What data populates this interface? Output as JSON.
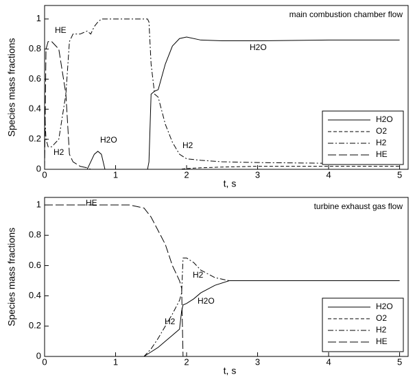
{
  "chart_data": [
    {
      "type": "line",
      "annotations": [
        "main combustion chamber flow",
        "HE",
        "H2",
        "H2O",
        "H2",
        "H2O"
      ],
      "xlabel": "t, s",
      "ylabel": "Species mass fractions",
      "xlim": [
        0,
        5.12
      ],
      "ylim": [
        0,
        1.09
      ],
      "xticks": [
        0,
        1,
        2,
        3,
        4,
        5
      ],
      "yticks": [
        0,
        0.2,
        0.4,
        0.6,
        0.8,
        1
      ],
      "legend": "lower right",
      "x": [
        0,
        0.02,
        0.05,
        0.1,
        0.2,
        0.3,
        0.35,
        0.4,
        0.5,
        0.6,
        0.65,
        0.7,
        0.75,
        0.8,
        0.85,
        0.9,
        1.0,
        1.2,
        1.45,
        1.47,
        1.5,
        1.55,
        1.6,
        1.7,
        1.8,
        1.9,
        2.0,
        2.2,
        2.5,
        3,
        4,
        5
      ],
      "series": [
        {
          "name": "H2O",
          "color": "#000000",
          "dash": "solid",
          "values": [
            0,
            0,
            0,
            0,
            0,
            0,
            0,
            0,
            0,
            0,
            0.05,
            0.1,
            0.12,
            0.1,
            0,
            0,
            0,
            0,
            0,
            0.05,
            0.5,
            0.52,
            0.53,
            0.7,
            0.82,
            0.87,
            0.88,
            0.86,
            0.855,
            0.855,
            0.86,
            0.86
          ]
        },
        {
          "name": "O2",
          "color": "#000000",
          "dash": "dashed",
          "values": [
            0,
            0,
            0,
            0,
            0,
            0,
            0,
            0,
            0,
            0,
            0,
            0,
            0,
            0,
            0,
            0,
            0,
            0,
            0,
            0,
            0,
            0,
            0,
            0,
            0,
            0,
            0.005,
            0.01,
            0.015,
            0.02,
            0.02,
            0.02
          ]
        },
        {
          "name": "H2",
          "color": "#000000",
          "dash": "dashdot",
          "values": [
            0.4,
            0.2,
            0.15,
            0.15,
            0.2,
            0.5,
            0.85,
            0.9,
            0.9,
            0.92,
            0.9,
            0.95,
            0.98,
            1,
            1,
            1,
            1,
            1,
            1,
            0.98,
            0.7,
            0.5,
            0.48,
            0.3,
            0.18,
            0.1,
            0.07,
            0.06,
            0.05,
            0.045,
            0.04,
            0.04
          ]
        },
        {
          "name": "HE",
          "color": "#000000",
          "dash": "longdash",
          "values": [
            0,
            0.8,
            0.85,
            0.85,
            0.8,
            0.5,
            0.1,
            0.05,
            0.02,
            0.01,
            0,
            0,
            0,
            0,
            0,
            0,
            0,
            0,
            0,
            0,
            0,
            0,
            0,
            0,
            0,
            0,
            0,
            0,
            0,
            0,
            0,
            0
          ]
        }
      ]
    },
    {
      "type": "line",
      "annotations": [
        "turbine exhaust gas flow",
        "HE",
        "H2",
        "H2O",
        "H2"
      ],
      "xlabel": "t, s",
      "ylabel": "Species mass fractions",
      "xlim": [
        0,
        5.12
      ],
      "ylim": [
        0,
        1.05
      ],
      "xticks": [
        0,
        1,
        2,
        3,
        4,
        5
      ],
      "yticks": [
        0,
        0.2,
        0.4,
        0.6,
        0.8,
        1
      ],
      "legend": "lower right",
      "x": [
        0,
        1,
        1.2,
        1.4,
        1.5,
        1.6,
        1.7,
        1.8,
        1.9,
        1.93,
        1.95,
        2.0,
        2.1,
        2.2,
        2.4,
        2.6,
        3,
        4,
        5
      ],
      "series": [
        {
          "name": "H2O",
          "color": "#000000",
          "dash": "solid",
          "values": [
            0,
            0,
            0,
            0,
            0.03,
            0.06,
            0.1,
            0.14,
            0.18,
            0.3,
            0.34,
            0.35,
            0.38,
            0.42,
            0.47,
            0.5,
            0.5,
            0.5,
            0.5
          ]
        },
        {
          "name": "O2",
          "color": "#000000",
          "dash": "dashed",
          "values": [
            0,
            0,
            0,
            0,
            0,
            0,
            0,
            0,
            0,
            0,
            0,
            0,
            0,
            0,
            0,
            0,
            0,
            0,
            0
          ]
        },
        {
          "name": "H2",
          "color": "#000000",
          "dash": "dashdot",
          "values": [
            0,
            0,
            0,
            0,
            0.05,
            0.12,
            0.2,
            0.28,
            0.37,
            0.42,
            0.65,
            0.65,
            0.62,
            0.57,
            0.52,
            0.5,
            0.5,
            0.5,
            0.5
          ]
        },
        {
          "name": "HE",
          "color": "#000000",
          "dash": "longdash",
          "values": [
            1,
            1,
            1,
            0.98,
            0.92,
            0.83,
            0.74,
            0.6,
            0.5,
            0.45,
            0,
            0,
            0,
            0,
            0,
            0,
            0,
            0,
            0
          ]
        }
      ]
    }
  ]
}
